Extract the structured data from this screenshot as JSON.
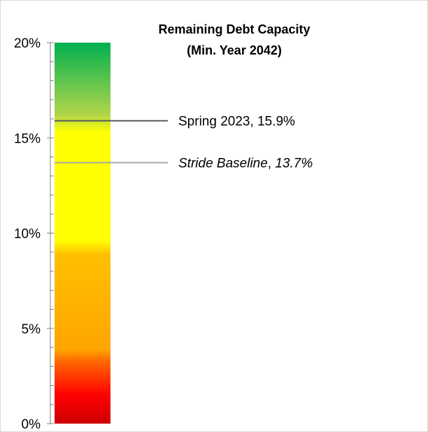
{
  "chart_data": {
    "type": "bar",
    "title_lines": [
      "Remaining Debt Capacity",
      "(Min. Year 2042)"
    ],
    "ylim": [
      0,
      20
    ],
    "y_ticks": [
      {
        "value": 0,
        "label": "0%"
      },
      {
        "value": 5,
        "label": "5%"
      },
      {
        "value": 10,
        "label": "10%"
      },
      {
        "value": 15,
        "label": "15%"
      },
      {
        "value": 20,
        "label": "20%"
      }
    ],
    "minor_tick_step": 1,
    "gradient_bands": [
      {
        "value": 0,
        "color": "#cc0000"
      },
      {
        "value": 1.5,
        "color": "#ff0000"
      },
      {
        "value": 3.3,
        "color": "#ff6a00"
      },
      {
        "value": 3.9,
        "color": "#ffa500"
      },
      {
        "value": 8.9,
        "color": "#ffc000"
      },
      {
        "value": 9.6,
        "color": "#ffff00"
      },
      {
        "value": 15.3,
        "color": "#ffff00"
      },
      {
        "value": 16.2,
        "color": "#b2d64a"
      },
      {
        "value": 20,
        "color": "#00b050"
      }
    ],
    "markers": [
      {
        "label": "Spring 2023, 15.9%",
        "value": 15.9,
        "italic": false,
        "color": "#595959"
      },
      {
        "label": "Stride Baseline, 13.7%",
        "value": 13.7,
        "italic": true,
        "color": "#a6a6a6"
      }
    ],
    "grid": false
  }
}
